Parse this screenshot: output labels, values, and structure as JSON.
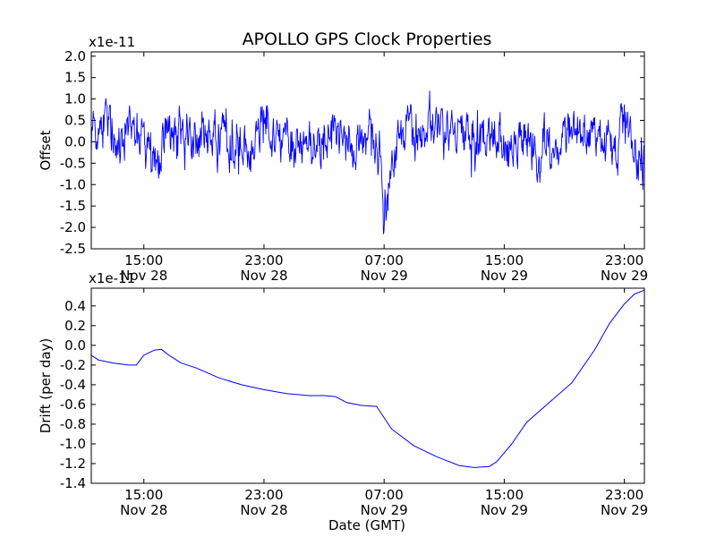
{
  "chart_data": [
    {
      "type": "line",
      "title": "APOLLO GPS Clock Properties",
      "xlabel": "",
      "ylabel": "Offset",
      "multiplier": "x1e-11",
      "ylim": [
        -2.5,
        2.1
      ],
      "xlim": [
        "2014-11-28 11:30",
        "2014-11-30 00:20"
      ],
      "yticks": [
        "2.0",
        "1.5",
        "1.0",
        "0.5",
        "0.0",
        "-0.5",
        "-1.0",
        "-1.5",
        "-2.0",
        "-2.5"
      ],
      "xticks": [
        {
          "time": "15:00",
          "date": "Nov 28"
        },
        {
          "time": "23:00",
          "date": "Nov 28"
        },
        {
          "time": "07:00",
          "date": "Nov 29"
        },
        {
          "time": "15:00",
          "date": "Nov 29"
        },
        {
          "time": "23:00",
          "date": "Nov 29"
        }
      ],
      "line_color": "#0000ff",
      "series": [
        {
          "x": [
            "2014-11-28 11:30",
            "2014-11-28 12:30",
            "2014-11-28 13:00",
            "2014-11-28 14:00",
            "2014-11-28 15:00",
            "2014-11-28 15:30",
            "2014-11-28 16:00",
            "2014-11-28 16:30",
            "2014-11-28 17:30",
            "2014-11-28 18:30",
            "2014-11-28 20:00",
            "2014-11-28 21:30",
            "2014-11-28 23:00",
            "2014-11-29 00:00",
            "2014-11-29 01:00",
            "2014-11-29 02:00",
            "2014-11-29 03:00",
            "2014-11-29 04:00",
            "2014-11-29 05:00",
            "2014-11-29 06:00",
            "2014-11-29 06:40",
            "2014-11-29 07:00",
            "2014-11-29 07:30",
            "2014-11-29 08:30",
            "2014-11-29 09:30",
            "2014-11-29 10:30",
            "2014-11-29 12:00",
            "2014-11-29 13:30",
            "2014-11-29 15:00",
            "2014-11-29 16:30",
            "2014-11-29 18:00",
            "2014-11-29 19:30",
            "2014-11-29 21:00",
            "2014-11-29 22:30",
            "2014-11-29 23:00",
            "2014-11-29 23:30",
            "2014-11-30 00:20"
          ],
          "values": [
            0.3,
            0.5,
            0.0,
            0.4,
            0.1,
            -0.5,
            -0.6,
            0.2,
            0.0,
            0.1,
            0.2,
            -0.2,
            0.5,
            0.1,
            0.0,
            -0.1,
            0.0,
            0.2,
            -0.2,
            0.2,
            0.0,
            -1.4,
            -0.3,
            0.3,
            0.2,
            0.4,
            0.0,
            0.1,
            0.0,
            0.1,
            -0.1,
            0.1,
            0.2,
            -0.2,
            0.4,
            0.0,
            -0.2
          ]
        }
      ]
    },
    {
      "type": "line",
      "title": "",
      "xlabel": "Date (GMT)",
      "ylabel": "Drift (per day)",
      "multiplier": "x1e-11",
      "ylim": [
        -1.4,
        0.58
      ],
      "xlim": [
        "2014-11-28 11:30",
        "2014-11-30 00:20"
      ],
      "yticks": [
        "0.4",
        "0.2",
        "0.0",
        "-0.2",
        "-0.4",
        "-0.6",
        "-0.8",
        "-1.0",
        "-1.2",
        "-1.4"
      ],
      "xticks": [
        {
          "time": "15:00",
          "date": "Nov 28"
        },
        {
          "time": "23:00",
          "date": "Nov 28"
        },
        {
          "time": "07:00",
          "date": "Nov 29"
        },
        {
          "time": "15:00",
          "date": "Nov 29"
        },
        {
          "time": "23:00",
          "date": "Nov 29"
        }
      ],
      "line_color": "#0000ff",
      "series": [
        {
          "x": [
            "2014-11-28 11:30",
            "2014-11-28 12:00",
            "2014-11-28 13:00",
            "2014-11-28 14:00",
            "2014-11-28 14:30",
            "2014-11-28 15:00",
            "2014-11-28 15:40",
            "2014-11-28 16:10",
            "2014-11-28 16:40",
            "2014-11-28 17:30",
            "2014-11-28 18:30",
            "2014-11-28 20:00",
            "2014-11-28 21:30",
            "2014-11-28 23:00",
            "2014-11-29 00:30",
            "2014-11-29 02:00",
            "2014-11-29 03:00",
            "2014-11-29 03:45",
            "2014-11-29 04:30",
            "2014-11-29 05:30",
            "2014-11-29 06:30",
            "2014-11-29 07:30",
            "2014-11-29 09:00",
            "2014-11-29 10:30",
            "2014-11-29 12:00",
            "2014-11-29 13:00",
            "2014-11-29 14:00",
            "2014-11-29 14:30",
            "2014-11-29 15:30",
            "2014-11-29 16:30",
            "2014-11-29 18:00",
            "2014-11-29 19:30",
            "2014-11-29 21:00",
            "2014-11-29 22:00",
            "2014-11-29 23:00",
            "2014-11-29 23:40",
            "2014-11-30 00:20"
          ],
          "values": [
            -0.1,
            -0.15,
            -0.18,
            -0.2,
            -0.2,
            -0.1,
            -0.05,
            -0.04,
            -0.1,
            -0.18,
            -0.23,
            -0.33,
            -0.4,
            -0.45,
            -0.49,
            -0.51,
            -0.51,
            -0.52,
            -0.58,
            -0.61,
            -0.62,
            -0.85,
            -1.02,
            -1.13,
            -1.22,
            -1.24,
            -1.23,
            -1.18,
            -1.0,
            -0.78,
            -0.58,
            -0.38,
            -0.05,
            0.22,
            0.42,
            0.52,
            0.56
          ]
        }
      ]
    }
  ]
}
